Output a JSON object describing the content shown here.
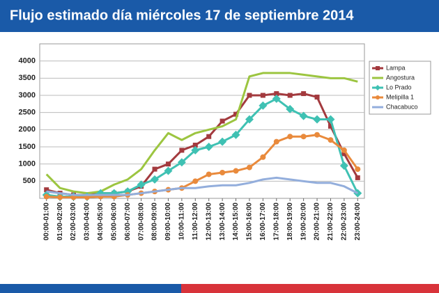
{
  "chart_data": {
    "type": "line",
    "title": "Flujo estimado día miércoles 17 de septiembre 2014",
    "categories": [
      "00:00-01:00",
      "01:00-02:00",
      "02:00-03:00",
      "03:00-04:00",
      "04:00-05:00",
      "05:00-06:00",
      "06:00-07:00",
      "07:00-08:00",
      "08:00-09:00",
      "09:00-10:00",
      "10:00-11:00",
      "11:00-12:00",
      "12:00-13:00",
      "13:00-14:00",
      "14:00-15:00",
      "15:00-16:00",
      "16:00-17:00",
      "17:00-18:00",
      "18:00-19:00",
      "19:00-20:00",
      "20:00-21:00",
      "21:00-22:00",
      "22:00-23:00",
      "23:00-24:00"
    ],
    "series": [
      {
        "name": "Lampa",
        "color": "#a33a3e",
        "marker": "square",
        "values": [
          250,
          150,
          100,
          100,
          150,
          150,
          200,
          350,
          850,
          1000,
          1400,
          1550,
          1800,
          2250,
          2450,
          3000,
          3000,
          3050,
          3000,
          3050,
          2950,
          2100,
          1300,
          600
        ]
      },
      {
        "name": "Angostura",
        "color": "#9cc540",
        "marker": "none",
        "values": [
          700,
          300,
          200,
          150,
          200,
          400,
          550,
          850,
          1400,
          1900,
          1700,
          1900,
          2000,
          2100,
          2300,
          3550,
          3650,
          3650,
          3650,
          3600,
          3550,
          3500,
          3500,
          3400
        ]
      },
      {
        "name": "Lo Prado",
        "color": "#3fc1b3",
        "marker": "diamond",
        "values": [
          100,
          50,
          50,
          50,
          150,
          150,
          200,
          400,
          550,
          800,
          1050,
          1400,
          1500,
          1650,
          1850,
          2300,
          2700,
          2900,
          2600,
          2400,
          2300,
          2300,
          950,
          150
        ]
      },
      {
        "name": "Melipilla 1",
        "color": "#e98a3c",
        "marker": "circle",
        "values": [
          50,
          30,
          30,
          30,
          50,
          50,
          100,
          150,
          200,
          250,
          300,
          500,
          700,
          750,
          800,
          900,
          1200,
          1650,
          1800,
          1800,
          1850,
          1700,
          1400,
          850
        ]
      },
      {
        "name": "Chacabuco",
        "color": "#93aedc",
        "marker": "none",
        "values": [
          200,
          150,
          100,
          100,
          100,
          100,
          100,
          150,
          200,
          250,
          300,
          300,
          350,
          380,
          380,
          450,
          550,
          600,
          550,
          500,
          450,
          450,
          350,
          150
        ]
      }
    ],
    "ylim": [
      0,
      4500
    ],
    "yticks": [
      500,
      1000,
      1500,
      2000,
      2500,
      3000,
      3500,
      4000
    ],
    "grid": true,
    "legend": "right"
  }
}
